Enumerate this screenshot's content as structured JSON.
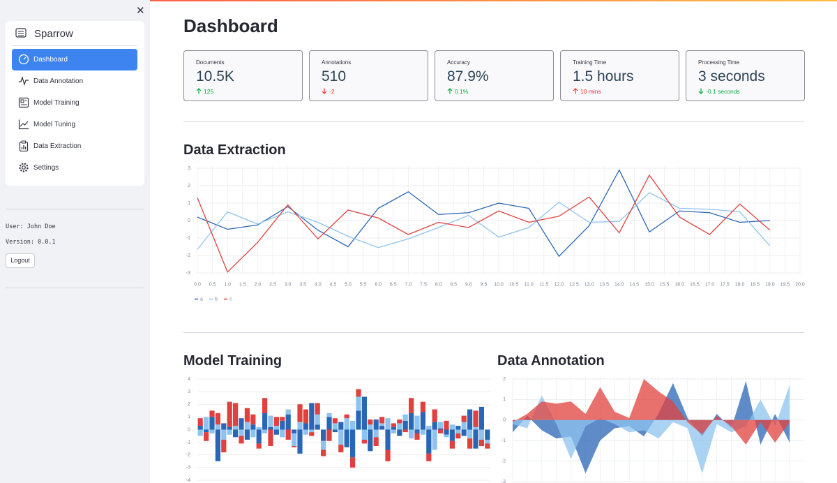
{
  "sidebar": {
    "title": "Sparrow",
    "menu": [
      "Dashboard",
      "Data Annotation",
      "Model Training",
      "Model Tuning",
      "Data Extraction",
      "Settings"
    ],
    "user": "User: John Doe",
    "version": "Version: 0.0.1",
    "logout": "Logout"
  },
  "header": {
    "title": "Dashboard"
  },
  "metrics": [
    {
      "label": "Documents",
      "value": "10.5K",
      "delta": "125",
      "direction": "up",
      "delta_color": "#09ab3b"
    },
    {
      "label": "Annotations",
      "value": "510",
      "delta": "-2",
      "direction": "down",
      "delta_color": "#ff2b2b"
    },
    {
      "label": "Accuracy",
      "value": "87.9%",
      "delta": "0.1%",
      "direction": "up",
      "delta_color": "#09ab3b"
    },
    {
      "label": "Training Time",
      "value": "1.5 hours",
      "delta": "10 mins",
      "direction": "up",
      "delta_color": "#ff2b2b"
    },
    {
      "label": "Processing Time",
      "value": "3 seconds",
      "delta": "-0.1 seconds",
      "direction": "down",
      "delta_color": "#09ab3b"
    }
  ],
  "chart_data": [
    {
      "type": "line",
      "title": "Data Extraction",
      "grid": true,
      "legend": "bottom-left",
      "x": [
        0,
        1,
        2,
        3,
        4,
        5,
        6,
        7,
        8,
        9,
        10,
        11,
        12,
        13,
        14,
        15,
        16,
        17,
        18,
        19
      ],
      "xlim": [
        0,
        20
      ],
      "xticks": [
        {
          "value": 0,
          "label": "0.0"
        },
        0.5,
        {
          "value": 1,
          "label": "1.0"
        },
        1.5,
        {
          "value": 2,
          "label": "2.0"
        },
        2.5,
        {
          "value": 3,
          "label": "3.0"
        },
        3.5,
        {
          "value": 4,
          "label": "4.0"
        },
        4.5,
        {
          "value": 5,
          "label": "5.0"
        },
        5.5,
        {
          "value": 6,
          "label": "6.0"
        },
        6.5,
        {
          "value": 7,
          "label": "7.0"
        },
        7.5,
        {
          "value": 8,
          "label": "8.0"
        },
        8.5,
        {
          "value": 9,
          "label": "9.0"
        },
        9.5,
        {
          "value": 10,
          "label": "10.0"
        },
        10.5,
        {
          "value": 11,
          "label": "11.0"
        },
        11.5,
        {
          "value": 12,
          "label": "12.0"
        },
        12.5,
        {
          "value": 13,
          "label": "13.0"
        },
        13.5,
        {
          "value": 14,
          "label": "14.0"
        },
        14.5,
        {
          "value": 15,
          "label": "15.0"
        },
        15.5,
        {
          "value": 16,
          "label": "16.0"
        },
        16.5,
        {
          "value": 17,
          "label": "17.0"
        },
        17.5,
        {
          "value": 18,
          "label": "18.0"
        },
        18.5,
        {
          "value": 19,
          "label": "19.0"
        },
        19.5,
        {
          "value": 20,
          "label": "20.0"
        }
      ],
      "ylim": [
        -3.1,
        3.1
      ],
      "yticks": [
        -3,
        -2,
        -1,
        0,
        1,
        2,
        3
      ],
      "series": [
        {
          "name": "a",
          "color": "#2a66b6",
          "values": [
            0.2,
            -0.5,
            -0.25,
            0.8,
            -0.55,
            -1.5,
            0.7,
            1.65,
            0.35,
            0.45,
            1.0,
            0.7,
            -2.05,
            -0.3,
            2.9,
            -0.65,
            0.55,
            0.45,
            -0.1,
            0.0
          ]
        },
        {
          "name": "b",
          "color": "#8ec3ef",
          "values": [
            -1.65,
            0.5,
            -0.2,
            0.5,
            -0.1,
            -0.9,
            -1.55,
            -1.05,
            -0.4,
            0.3,
            -0.95,
            -0.4,
            1.05,
            -0.1,
            -0.05,
            1.6,
            0.7,
            0.65,
            0.5,
            -1.45
          ]
        },
        {
          "name": "c",
          "color": "#e0413e",
          "values": [
            1.3,
            -2.95,
            -1.25,
            0.9,
            -1.05,
            0.6,
            0.15,
            -0.8,
            -0.1,
            -0.4,
            0.55,
            -0.1,
            0.25,
            1.35,
            -0.7,
            2.6,
            0.2,
            -0.8,
            0.95,
            -0.55
          ]
        }
      ]
    },
    {
      "type": "stacked-bar",
      "title": "Model Training",
      "grid": true,
      "categories": [
        null,
        null,
        null,
        null,
        null,
        null,
        null,
        null,
        null,
        null,
        null,
        null,
        null,
        null,
        null,
        null,
        null,
        null,
        null,
        null,
        null,
        null,
        null,
        null,
        null,
        null,
        null,
        null,
        null,
        null,
        null,
        null,
        null,
        null,
        null,
        null,
        null,
        null,
        null,
        null,
        null,
        null,
        null,
        null,
        null,
        null,
        null,
        null,
        null,
        null
      ],
      "ylim": [
        -4.2,
        4.2
      ],
      "yticks": [
        -4,
        -3,
        -2,
        -1,
        0,
        1,
        2,
        3,
        4
      ],
      "series": [
        {
          "name": "a",
          "color": "#2a66b6",
          "values": [
            0.3,
            -0.2,
            1.0,
            -2.5,
            0.5,
            0.2,
            -0.6,
            0.9,
            -0.8,
            0.4,
            -1.1,
            1.3,
            0.2,
            -0.4,
            0.7,
            1.2,
            -0.3,
            -1.9,
            0.5,
            2.1,
            0.4,
            -0.9,
            1.0,
            -0.2,
            0.6,
            -1.4,
            -2.2,
            1.5,
            2.6,
            -1.7,
            0.8,
            0.3,
            -1.6,
            0.2,
            -0.5,
            0.7,
            1.3,
            -0.3,
            1.4,
            -1.9,
            0.6,
            0.1,
            -0.4,
            -0.9,
            0.3,
            -0.5,
            1.6,
            -1.5,
            1.8,
            -0.8
          ]
        },
        {
          "name": "b",
          "color": "#8ec3ef",
          "values": [
            -0.5,
            1.0,
            -0.3,
            0.4,
            -0.8,
            -0.4,
            0.3,
            -0.5,
            0.6,
            -0.6,
            0.2,
            -0.3,
            0.9,
            0.3,
            -0.6,
            0.4,
            -1.0,
            0.6,
            -0.4,
            -0.2,
            0.8,
            -0.7,
            0.3,
            0.5,
            -1.2,
            0.9,
            0.7,
            1.1,
            -0.8,
            0.4,
            -0.6,
            0.2,
            0.9,
            -0.3,
            0.5,
            0.5,
            -0.7,
            1.1,
            -0.4,
            0.3,
            -1.6,
            0.5,
            -0.2,
            0.4,
            -0.3,
            0.6,
            -0.7,
            0.2,
            -0.8,
            -0.3
          ]
        },
        {
          "name": "c",
          "color": "#e0413e",
          "values": [
            0.6,
            -0.7,
            0.5,
            0.9,
            -1.0,
            2.0,
            1.8,
            -0.6,
            1.1,
            0.8,
            -0.4,
            1.2,
            -1.3,
            0.7,
            0.3,
            -0.8,
            -0.1,
            1.4,
            1.1,
            -0.3,
            0.9,
            -0.5,
            -0.9,
            0.4,
            -0.6,
            0.3,
            -0.8,
            0.6,
            -0.3,
            0.4,
            -0.7,
            0.5,
            -0.9,
            0.3,
            0.3,
            -0.2,
            1.2,
            -0.5,
            0.8,
            -0.6,
            1.0,
            -0.3,
            0.7,
            -0.6,
            -0.4,
            0.5,
            -0.8,
            1.3,
            -0.5,
            -0.4
          ]
        }
      ]
    },
    {
      "type": "area",
      "title": "Data Annotation",
      "grid": true,
      "categories": [
        null,
        null,
        null,
        null,
        null,
        null,
        null,
        null,
        null,
        null,
        null,
        null,
        null,
        null,
        null,
        null,
        null,
        null,
        null,
        null
      ],
      "ylim": [
        -3,
        2.1
      ],
      "yticks": [
        -3,
        -2,
        -1,
        0,
        1,
        2
      ],
      "series": [
        {
          "name": "a",
          "color": "#2a66b6",
          "values": [
            -0.6,
            0.2,
            -0.5,
            -0.9,
            -0.8,
            -2.6,
            -1.0,
            -0.4,
            -0.3,
            -0.8,
            0.3,
            1.8,
            0.1,
            -0.8,
            0.3,
            -0.4,
            1.9,
            -1.2,
            0.3,
            -1.1
          ]
        },
        {
          "name": "b",
          "color": "#8ec3ef",
          "values": [
            -0.2,
            -0.4,
            1.2,
            -0.2,
            -1.9,
            -0.3,
            0.1,
            -0.2,
            -0.6,
            -0.5,
            -0.9,
            -0.1,
            -0.4,
            -2.6,
            -0.2,
            -0.6,
            -0.3,
            1.0,
            -0.3,
            1.7
          ]
        },
        {
          "name": "c",
          "color": "#e0413e",
          "values": [
            -0.1,
            0.3,
            0.9,
            0.8,
            0.9,
            0.3,
            1.6,
            0.4,
            0.1,
            2.0,
            1.4,
            0.9,
            -0.1,
            -0.7,
            0.2,
            -0.3,
            -1.2,
            -0.1,
            -1.1,
            -0.1
          ]
        }
      ]
    }
  ]
}
